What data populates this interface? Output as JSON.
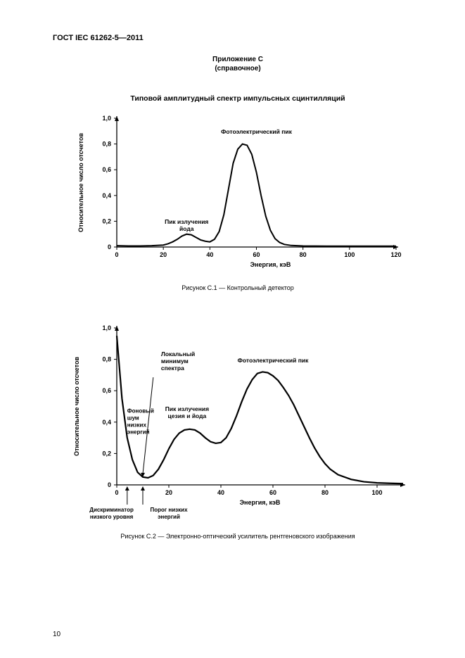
{
  "header": "ГОСТ IEC 61262-5—2011",
  "annex_label": "Приложение C",
  "annex_type": "(справочное)",
  "section_title": "Типовой амплитудный спектр импульсных сцинтилляций",
  "page_number": "10",
  "fig1": {
    "caption": "Рисунок C.1 — Контрольный детектор",
    "xlabel": "Энергия, кэВ",
    "ylabel": "Относительное число отсчетов",
    "xlim": [
      0,
      120
    ],
    "ylim": [
      0,
      1.0
    ],
    "xticks": [
      0,
      20,
      40,
      60,
      80,
      100,
      120
    ],
    "yticks": [
      "0",
      "0,2",
      "0,4",
      "0,6",
      "0,8",
      "1,0"
    ],
    "line_color": "#000000",
    "line_width": 2.0,
    "axis_color": "#000000",
    "tick_fontsize": 9,
    "label_fontsize": 9,
    "annotations": {
      "iodine_peak": "Пик излучения\nйода",
      "photo_peak": "Фотоэлектрический пик"
    },
    "series_x": [
      0,
      5,
      10,
      15,
      20,
      22,
      24,
      26,
      28,
      30,
      32,
      34,
      36,
      38,
      40,
      42,
      44,
      46,
      48,
      50,
      52,
      54,
      56,
      58,
      60,
      62,
      64,
      66,
      68,
      70,
      72,
      75,
      80,
      90,
      100,
      110,
      120
    ],
    "series_y": [
      0.01,
      0.008,
      0.008,
      0.01,
      0.015,
      0.025,
      0.04,
      0.06,
      0.085,
      0.1,
      0.095,
      0.075,
      0.055,
      0.045,
      0.04,
      0.06,
      0.12,
      0.25,
      0.45,
      0.65,
      0.76,
      0.8,
      0.79,
      0.72,
      0.58,
      0.4,
      0.24,
      0.13,
      0.065,
      0.035,
      0.02,
      0.012,
      0.008,
      0.007,
      0.007,
      0.007,
      0.007
    ]
  },
  "fig2": {
    "caption": "Рисунок C.2 — Электронно-оптический усилитель рентгеновского изображения",
    "xlabel": "Энергия, кэВ",
    "ylabel": "Относительное число отсчетов",
    "xlim": [
      0,
      110
    ],
    "ylim": [
      0,
      1.0
    ],
    "xticks": [
      0,
      20,
      40,
      60,
      80,
      100
    ],
    "yticks": [
      "0",
      "0,2",
      "0,4",
      "0,6",
      "0,8",
      "1,0"
    ],
    "line_color": "#000000",
    "line_width": 2.2,
    "axis_color": "#000000",
    "tick_fontsize": 9,
    "label_fontsize": 9,
    "annotations": {
      "local_min": "Локальный\nминимум\nспектра",
      "bg_noise": "Фоновый\nшум\nнизких\nэнергий",
      "cs_i_peak": "Пик излучения\nцезия и йода",
      "photo_peak": "Фотоэлектрический пик",
      "disc_low": "Дискриминатор\nнизкого уровня",
      "thresh_low": "Порог низких\nэнергий"
    },
    "series_x": [
      0,
      2,
      4,
      6,
      8,
      10,
      12,
      14,
      16,
      18,
      20,
      22,
      24,
      26,
      28,
      30,
      32,
      34,
      36,
      38,
      40,
      42,
      44,
      46,
      48,
      50,
      52,
      54,
      56,
      58,
      60,
      62,
      64,
      66,
      68,
      70,
      72,
      74,
      76,
      78,
      80,
      82,
      85,
      90,
      95,
      100,
      105,
      110
    ],
    "series_y": [
      0.95,
      0.55,
      0.3,
      0.16,
      0.08,
      0.05,
      0.045,
      0.06,
      0.1,
      0.16,
      0.23,
      0.29,
      0.33,
      0.35,
      0.355,
      0.35,
      0.33,
      0.3,
      0.275,
      0.265,
      0.27,
      0.3,
      0.36,
      0.44,
      0.53,
      0.61,
      0.67,
      0.71,
      0.72,
      0.715,
      0.695,
      0.665,
      0.62,
      0.57,
      0.51,
      0.44,
      0.37,
      0.3,
      0.235,
      0.18,
      0.135,
      0.1,
      0.065,
      0.035,
      0.02,
      0.013,
      0.01,
      0.008
    ]
  }
}
